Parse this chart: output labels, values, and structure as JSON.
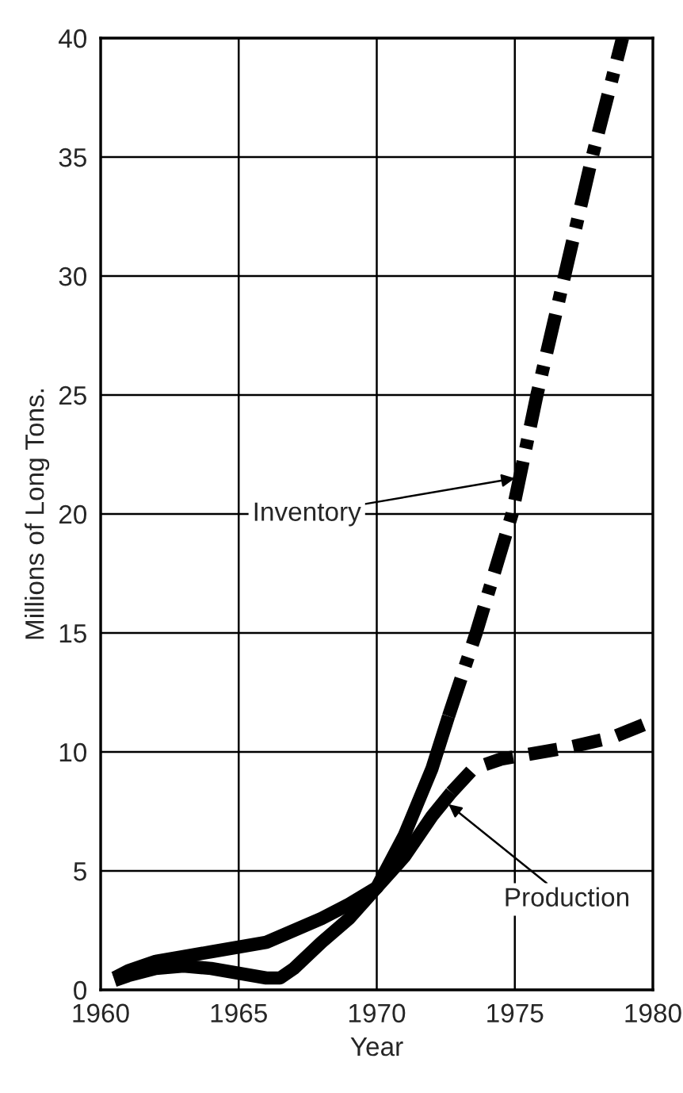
{
  "chart_data": {
    "type": "line",
    "xlabel": "Year",
    "ylabel": "Millions of Long Tons.",
    "xlim": [
      1960,
      1980
    ],
    "ylim": [
      0,
      40
    ],
    "xticks": [
      1960,
      1965,
      1970,
      1975,
      1980
    ],
    "yticks": [
      0,
      5,
      10,
      15,
      20,
      25,
      30,
      35,
      40
    ],
    "grid": true,
    "series": [
      {
        "color": "#000000",
        "line_style": "solid",
        "x": [
          1960.5,
          1961,
          1962,
          1963,
          1964,
          1965,
          1966,
          1967,
          1968,
          1969,
          1970,
          1971,
          1972,
          1972.7
        ],
        "values": [
          0.5,
          0.8,
          1.2,
          1.4,
          1.6,
          1.8,
          2.0,
          2.5,
          3.0,
          3.6,
          4.3,
          5.6,
          7.3,
          8.3
        ]
      },
      {
        "color": "#000000",
        "line_style": "dashed",
        "x": [
          1972.7,
          1973.5,
          1974.5,
          1975.5,
          1977,
          1978.5,
          1980
        ],
        "values": [
          8.3,
          9.3,
          9.7,
          9.9,
          10.2,
          10.6,
          11.3
        ]
      },
      {
        "color": "#000000",
        "line_style": "solid",
        "x": [
          1960.5,
          1961,
          1962,
          1963,
          1964,
          1965,
          1966,
          1966.5,
          1967,
          1968,
          1969,
          1970,
          1971,
          1972,
          1972.6
        ],
        "values": [
          0.4,
          0.6,
          0.9,
          1.0,
          0.9,
          0.7,
          0.5,
          0.5,
          0.9,
          2.0,
          3.0,
          4.3,
          6.5,
          9.3,
          11.5
        ]
      },
      {
        "color": "#000000",
        "line_style": "dashdot",
        "x": [
          1972.6,
          1973.6,
          1974.9,
          1975.8,
          1976.8,
          1977.8,
          1978.9
        ],
        "values": [
          11.5,
          15,
          20,
          25,
          30,
          35,
          40
        ]
      }
    ],
    "annotations": [
      {
        "text": "Inventory",
        "x": 1975,
        "y": 21.5
      },
      {
        "text": "Production",
        "x": 1972.6,
        "y": 7.8
      }
    ]
  }
}
